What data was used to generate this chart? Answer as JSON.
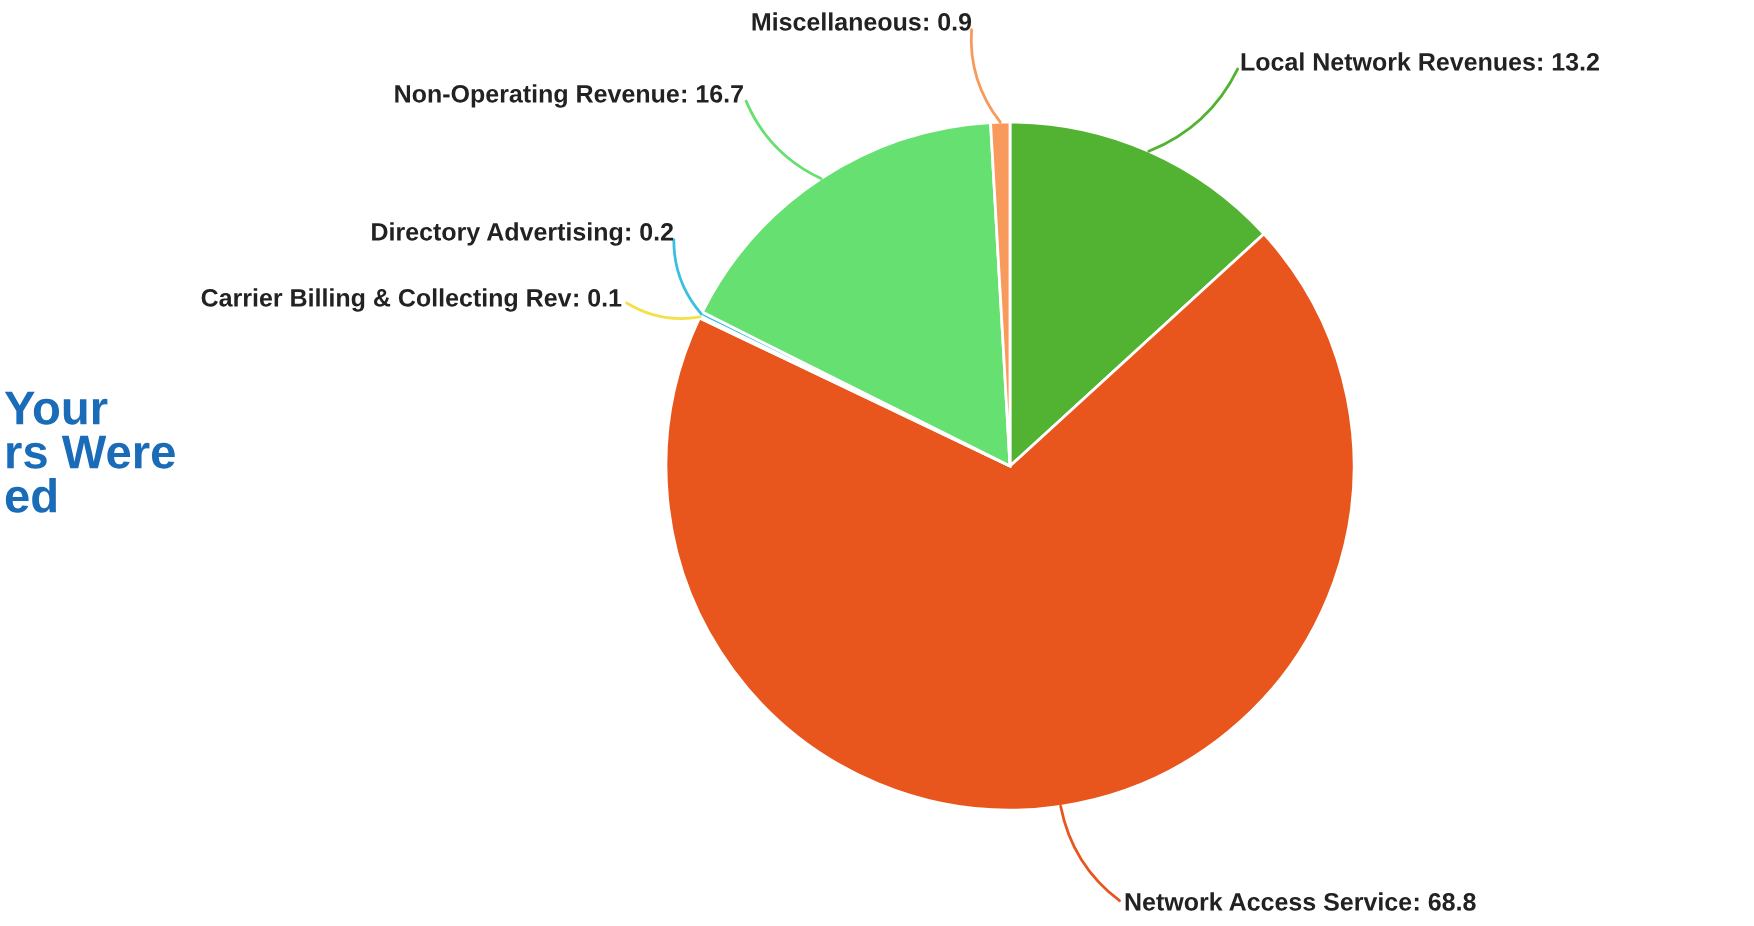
{
  "chart_data": {
    "type": "pie",
    "categories": [
      "Local Network Revenues",
      "Network Access Service",
      "Carrier Billing & Collecting Rev",
      "Directory Advertising",
      "Non-Operating Revenue",
      "Miscellaneous"
    ],
    "values": [
      13.2,
      68.8,
      0.1,
      0.2,
      16.7,
      0.9
    ],
    "colors": [
      "#52b332",
      "#e8561e",
      "#f5e04a",
      "#3bbfe0",
      "#66e070",
      "#f79a5c"
    ],
    "value_labels": [
      ": 13.2",
      ": 68.8",
      ": 0.1",
      ": 0.2",
      ": 16.7",
      ": 0.9"
    ],
    "annotations": [
      "Your\nrs Were\ned"
    ]
  }
}
